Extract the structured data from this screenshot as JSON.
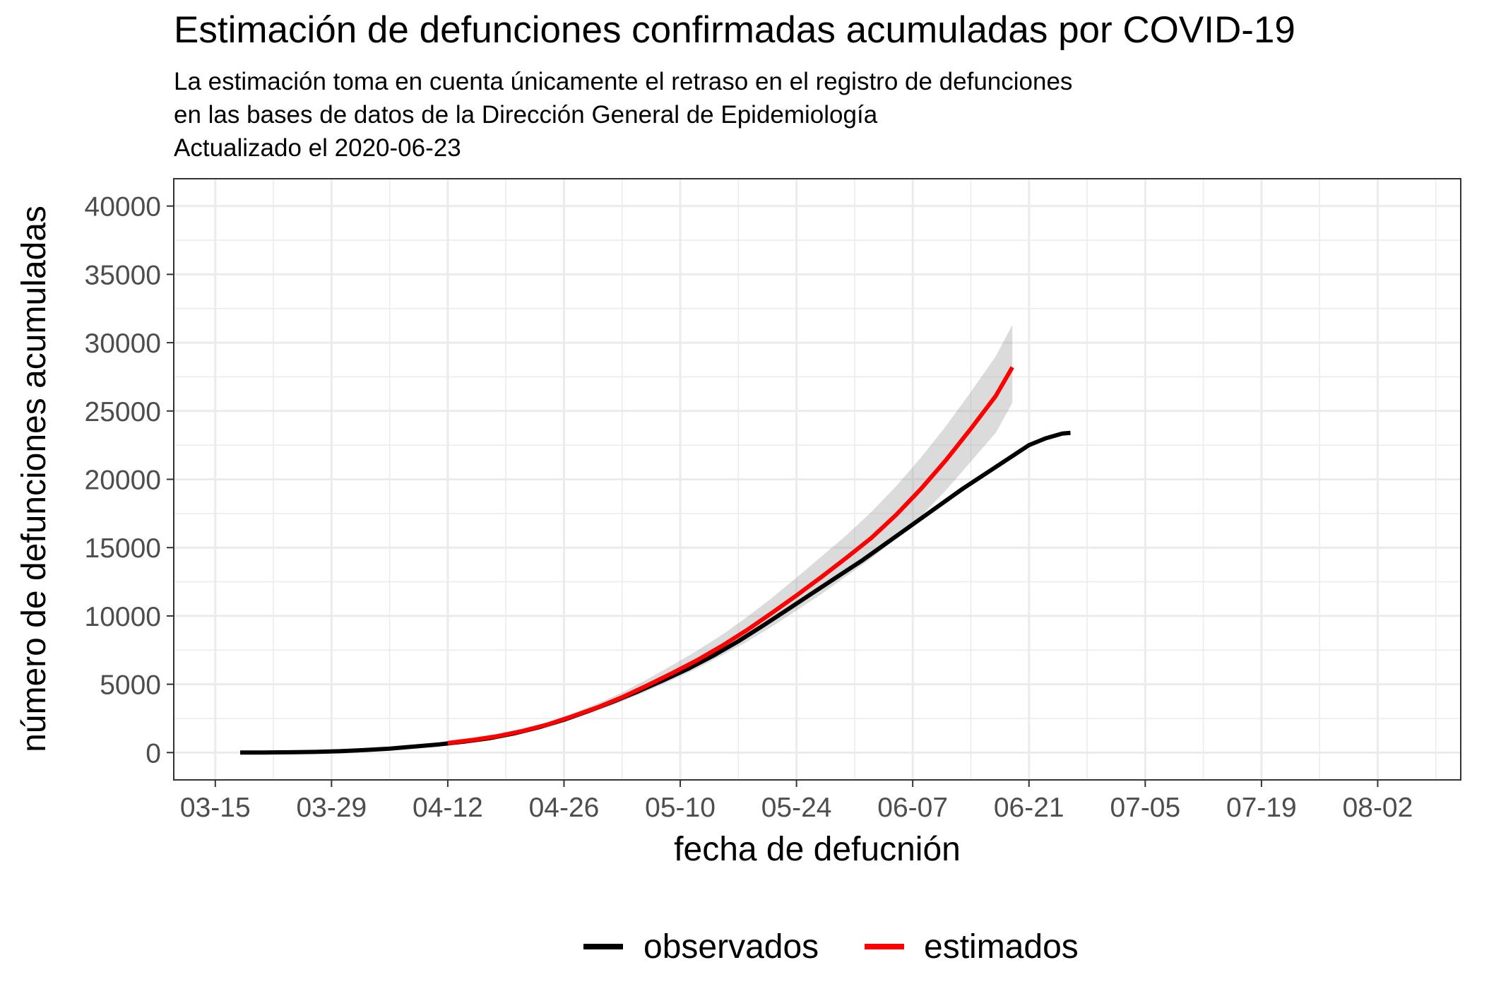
{
  "chart_data": {
    "type": "line",
    "title": "Estimación de defunciones confirmadas acumuladas por COVID-19",
    "subtitle": [
      "La estimación toma en cuenta únicamente el retraso en el registro de defunciones",
      "en las bases de datos de la Dirección General de Epidemiología",
      "Actualizado el 2020-06-23"
    ],
    "xlabel": "fecha de defucnión",
    "ylabel": "número de defunciones acumuladas",
    "xlim": [
      "2020-03-10",
      "2020-08-12"
    ],
    "ylim": [
      -2000,
      42000
    ],
    "x_ticks": [
      "2020-03-15",
      "2020-03-29",
      "2020-04-12",
      "2020-04-26",
      "2020-05-10",
      "2020-05-24",
      "2020-06-07",
      "2020-06-21",
      "2020-07-05",
      "2020-07-19",
      "2020-08-02"
    ],
    "x_tick_labels": [
      "03-15",
      "03-29",
      "04-12",
      "04-26",
      "05-10",
      "05-24",
      "06-07",
      "06-21",
      "07-05",
      "07-19",
      "08-02"
    ],
    "y_ticks": [
      0,
      5000,
      10000,
      15000,
      20000,
      25000,
      30000,
      35000,
      40000
    ],
    "y_tick_labels": [
      "0",
      "5000",
      "10000",
      "15000",
      "20000",
      "25000",
      "30000",
      "35000",
      "40000"
    ],
    "grid": true,
    "legend_position": "bottom",
    "series": [
      {
        "name": "observados",
        "color": "#000000",
        "points": [
          [
            "2020-03-18",
            0
          ],
          [
            "2020-03-21",
            5
          ],
          [
            "2020-03-24",
            20
          ],
          [
            "2020-03-27",
            50
          ],
          [
            "2020-03-30",
            100
          ],
          [
            "2020-04-02",
            180
          ],
          [
            "2020-04-05",
            290
          ],
          [
            "2020-04-08",
            440
          ],
          [
            "2020-04-11",
            600
          ],
          [
            "2020-04-14",
            800
          ],
          [
            "2020-04-17",
            1050
          ],
          [
            "2020-04-20",
            1400
          ],
          [
            "2020-04-23",
            1850
          ],
          [
            "2020-04-26",
            2400
          ],
          [
            "2020-04-29",
            3050
          ],
          [
            "2020-05-02",
            3750
          ],
          [
            "2020-05-05",
            4500
          ],
          [
            "2020-05-08",
            5300
          ],
          [
            "2020-05-11",
            6150
          ],
          [
            "2020-05-14",
            7100
          ],
          [
            "2020-05-17",
            8150
          ],
          [
            "2020-05-20",
            9300
          ],
          [
            "2020-05-23",
            10500
          ],
          [
            "2020-05-26",
            11700
          ],
          [
            "2020-05-29",
            12900
          ],
          [
            "2020-06-01",
            14100
          ],
          [
            "2020-06-04",
            15400
          ],
          [
            "2020-06-07",
            16700
          ],
          [
            "2020-06-10",
            18000
          ],
          [
            "2020-06-13",
            19300
          ],
          [
            "2020-06-16",
            20500
          ],
          [
            "2020-06-19",
            21700
          ],
          [
            "2020-06-21",
            22500
          ],
          [
            "2020-06-23",
            23000
          ],
          [
            "2020-06-25",
            23350
          ],
          [
            "2020-06-26",
            23400
          ]
        ]
      },
      {
        "name": "estimados",
        "color": "#ff0000",
        "points": [
          [
            "2020-04-12",
            700
          ],
          [
            "2020-04-15",
            920
          ],
          [
            "2020-04-18",
            1200
          ],
          [
            "2020-04-21",
            1580
          ],
          [
            "2020-04-24",
            2050
          ],
          [
            "2020-04-27",
            2650
          ],
          [
            "2020-04-30",
            3300
          ],
          [
            "2020-05-03",
            4050
          ],
          [
            "2020-05-06",
            4900
          ],
          [
            "2020-05-09",
            5800
          ],
          [
            "2020-05-12",
            6750
          ],
          [
            "2020-05-15",
            7800
          ],
          [
            "2020-05-18",
            8950
          ],
          [
            "2020-05-21",
            10200
          ],
          [
            "2020-05-24",
            11500
          ],
          [
            "2020-05-27",
            12850
          ],
          [
            "2020-05-30",
            14250
          ],
          [
            "2020-06-02",
            15700
          ],
          [
            "2020-06-05",
            17400
          ],
          [
            "2020-06-08",
            19300
          ],
          [
            "2020-06-11",
            21400
          ],
          [
            "2020-06-14",
            23700
          ],
          [
            "2020-06-17",
            26100
          ],
          [
            "2020-06-19",
            28200
          ]
        ],
        "ci_lower": [
          [
            "2020-04-12",
            650
          ],
          [
            "2020-04-15",
            860
          ],
          [
            "2020-04-18",
            1120
          ],
          [
            "2020-04-21",
            1470
          ],
          [
            "2020-04-24",
            1910
          ],
          [
            "2020-04-27",
            2460
          ],
          [
            "2020-04-30",
            3060
          ],
          [
            "2020-05-03",
            3740
          ],
          [
            "2020-05-06",
            4500
          ],
          [
            "2020-05-09",
            5300
          ],
          [
            "2020-05-12",
            6150
          ],
          [
            "2020-05-15",
            7100
          ],
          [
            "2020-05-18",
            8100
          ],
          [
            "2020-05-21",
            9200
          ],
          [
            "2020-05-24",
            10400
          ],
          [
            "2020-05-27",
            11600
          ],
          [
            "2020-05-30",
            12900
          ],
          [
            "2020-06-02",
            14200
          ],
          [
            "2020-06-05",
            15700
          ],
          [
            "2020-06-08",
            17300
          ],
          [
            "2020-06-11",
            19200
          ],
          [
            "2020-06-14",
            21300
          ],
          [
            "2020-06-17",
            23400
          ],
          [
            "2020-06-19",
            25600
          ]
        ],
        "ci_upper": [
          [
            "2020-04-12",
            760
          ],
          [
            "2020-04-15",
            990
          ],
          [
            "2020-04-18",
            1290
          ],
          [
            "2020-04-21",
            1700
          ],
          [
            "2020-04-24",
            2200
          ],
          [
            "2020-04-27",
            2850
          ],
          [
            "2020-04-30",
            3580
          ],
          [
            "2020-05-03",
            4400
          ],
          [
            "2020-05-06",
            5350
          ],
          [
            "2020-05-09",
            6380
          ],
          [
            "2020-05-12",
            7450
          ],
          [
            "2020-05-15",
            8600
          ],
          [
            "2020-05-18",
            9900
          ],
          [
            "2020-05-21",
            11300
          ],
          [
            "2020-05-24",
            12800
          ],
          [
            "2020-05-27",
            14350
          ],
          [
            "2020-05-30",
            15900
          ],
          [
            "2020-06-02",
            17600
          ],
          [
            "2020-06-05",
            19500
          ],
          [
            "2020-06-08",
            21600
          ],
          [
            "2020-06-11",
            23900
          ],
          [
            "2020-06-14",
            26400
          ],
          [
            "2020-06-17",
            29000
          ],
          [
            "2020-06-19",
            31300
          ]
        ]
      }
    ]
  }
}
